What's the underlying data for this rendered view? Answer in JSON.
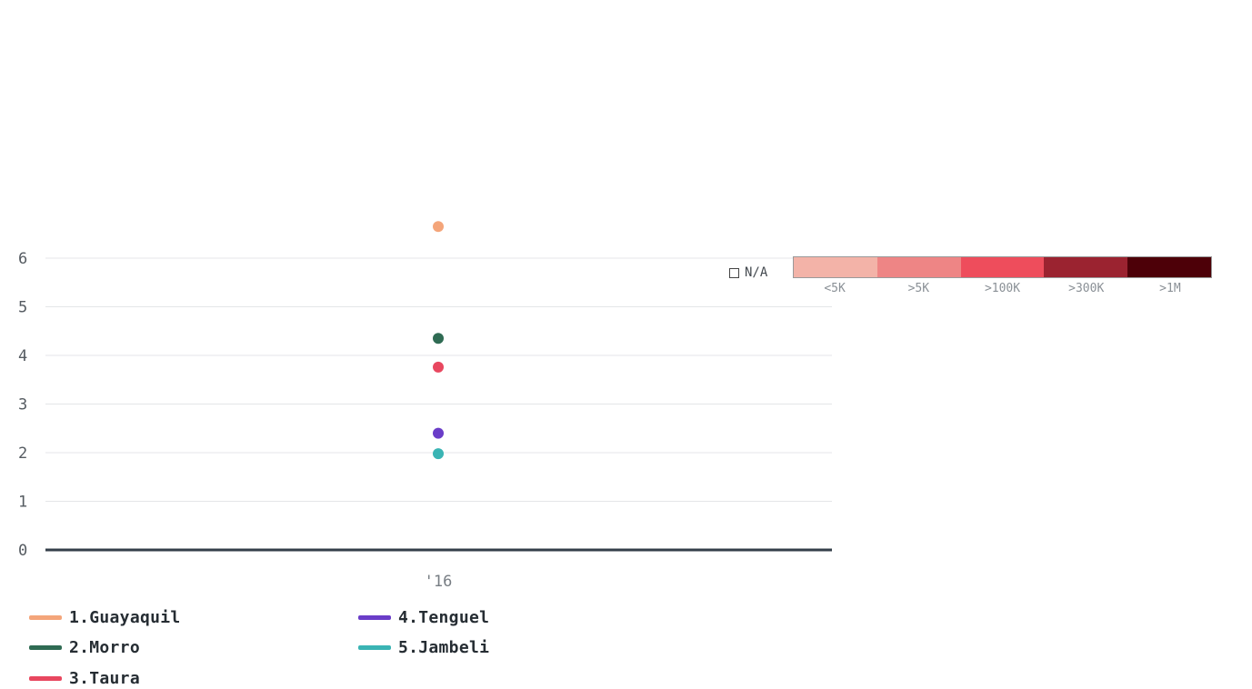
{
  "chart_data": {
    "type": "scatter",
    "title": "",
    "xlabel": "",
    "ylabel": "",
    "categories": [
      "'16"
    ],
    "ylim": [
      0,
      6.6
    ],
    "yticks": [
      0,
      1,
      2,
      3,
      4,
      5,
      6
    ],
    "grid": true,
    "legend_position": "bottom-left",
    "series": [
      {
        "name": "1.Guayaquil",
        "color": "#f4a57a",
        "values": [
          6.65
        ]
      },
      {
        "name": "2.Morro",
        "color": "#2f6b53",
        "values": [
          4.35
        ]
      },
      {
        "name": "3.Taura",
        "color": "#e8475f",
        "values": [
          3.76
        ]
      },
      {
        "name": "4.Tenguel",
        "color": "#6a3dc8",
        "values": [
          2.4
        ]
      },
      {
        "name": "5.Jambeli",
        "color": "#3ab4b4",
        "values": [
          1.98
        ]
      }
    ]
  },
  "color_scale": {
    "na_label": "N/A",
    "bins": [
      {
        "label": "<5K",
        "color": "#f3b3a8"
      },
      {
        "label": ">5K",
        "color": "#ee8585"
      },
      {
        "label": ">100K",
        "color": "#ee4d5c"
      },
      {
        "label": ">300K",
        "color": "#9b2330"
      },
      {
        "label": ">1M",
        "color": "#4d0008"
      }
    ]
  }
}
